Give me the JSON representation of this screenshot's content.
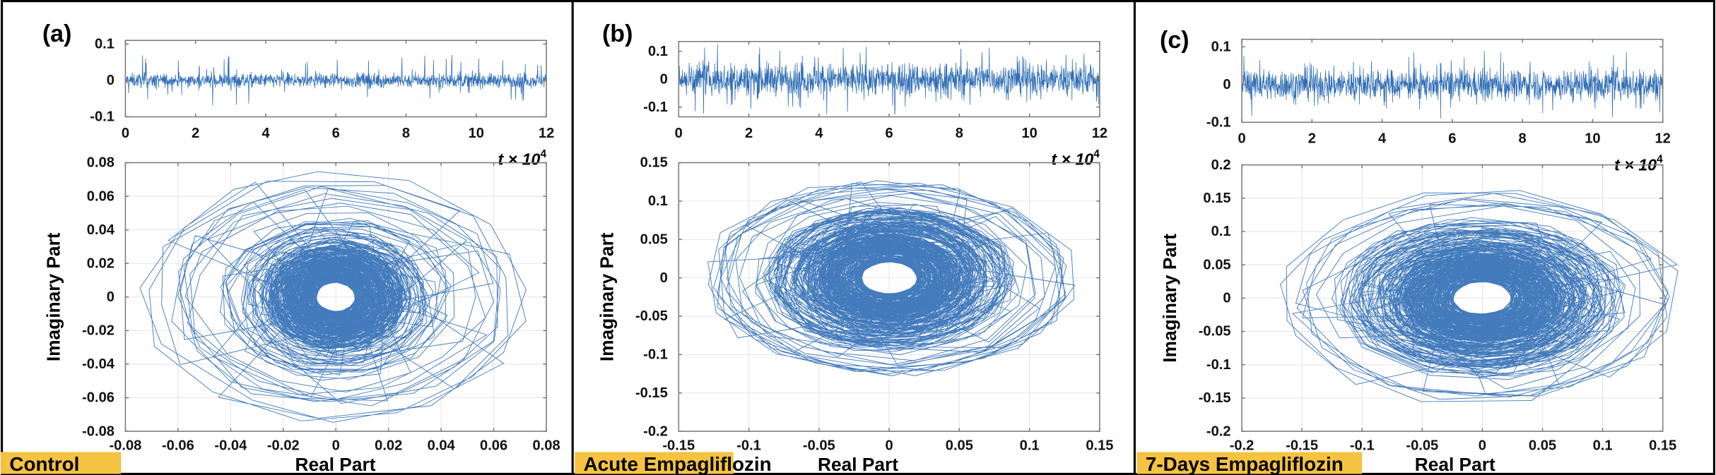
{
  "chart_data": [
    {
      "panel_letter": "(a)",
      "condition_label": "Control",
      "timeseries": {
        "type": "line",
        "xlabel": "t × 10",
        "xlabel_exponent": "4",
        "xlim": [
          0,
          12
        ],
        "ylim": [
          -0.1,
          0.11
        ],
        "xticks": [
          "0",
          "2",
          "4",
          "6",
          "8",
          "10",
          "12"
        ],
        "xtick_values": [
          0,
          2,
          4,
          6,
          8,
          10,
          12
        ],
        "yticks": [
          "0.1",
          "0",
          "-0.1"
        ],
        "ytick_values": [
          0.1,
          0,
          -0.1
        ],
        "core_amplitude": 0.012,
        "peak_amplitude": 0.07
      },
      "phase": {
        "type": "line",
        "xlabel": "Real Part",
        "ylabel": "Imaginary Part",
        "xlim": [
          -0.08,
          0.08
        ],
        "ylim": [
          -0.08,
          0.08
        ],
        "xticks": [
          "-0.08",
          "-0.06",
          "-0.04",
          "-0.02",
          "0",
          "0.02",
          "0.04",
          "0.06",
          "0.08"
        ],
        "xtick_values": [
          -0.08,
          -0.06,
          -0.04,
          -0.02,
          0,
          0.02,
          0.04,
          0.06,
          0.08
        ],
        "yticks": [
          "0.08",
          "0.06",
          "0.04",
          "0.02",
          "0",
          "-0.02",
          "-0.04",
          "-0.06",
          "-0.08"
        ],
        "ytick_values": [
          0.08,
          0.06,
          0.04,
          0.02,
          0,
          -0.02,
          -0.04,
          -0.06,
          -0.08
        ],
        "grid": true,
        "core_radius": [
          0.03,
          0.035
        ],
        "outer_radius": [
          0.075,
          0.075
        ]
      }
    },
    {
      "panel_letter": "(b)",
      "condition_label": "Acute Empagliflozin",
      "timeseries": {
        "type": "line",
        "xlabel": "t × 10",
        "xlabel_exponent": "4",
        "xlim": [
          0,
          12
        ],
        "ylim": [
          -0.135,
          0.135
        ],
        "xticks": [
          "0",
          "2",
          "4",
          "6",
          "8",
          "10",
          "12"
        ],
        "xtick_values": [
          0,
          2,
          4,
          6,
          8,
          10,
          12
        ],
        "yticks": [
          "0.1",
          "0",
          "-0.1"
        ],
        "ytick_values": [
          0.1,
          0,
          -0.1
        ],
        "core_amplitude": 0.035,
        "peak_amplitude": 0.13
      },
      "phase": {
        "type": "line",
        "xlabel": "Real Part",
        "ylabel": "Imaginary Part",
        "xlim": [
          -0.15,
          0.15
        ],
        "ylim": [
          -0.2,
          0.15
        ],
        "xticks": [
          "-0.15",
          "-0.1",
          "-0.05",
          "0",
          "0.05",
          "0.1",
          "0.15"
        ],
        "xtick_values": [
          -0.15,
          -0.1,
          -0.05,
          0,
          0.05,
          0.1,
          0.15
        ],
        "yticks": [
          "0.15",
          "0.1",
          "0.05",
          "0",
          "-0.05",
          "-0.1",
          "-0.15",
          "-0.2"
        ],
        "ytick_values": [
          0.15,
          0.1,
          0.05,
          0,
          -0.05,
          -0.1,
          -0.15,
          -0.2
        ],
        "grid": true,
        "core_radius": [
          0.08,
          0.085
        ],
        "outer_radius": [
          0.135,
          0.13
        ]
      }
    },
    {
      "panel_letter": "(c)",
      "condition_label": "7-Days Empagliflozin",
      "timeseries": {
        "type": "line",
        "xlabel": "t × 10",
        "xlabel_exponent": "4",
        "xlim": [
          0,
          12
        ],
        "ylim": [
          -0.1,
          0.12
        ],
        "xticks": [
          "0",
          "2",
          "4",
          "6",
          "8",
          "10",
          "12"
        ],
        "xtick_values": [
          0,
          2,
          4,
          6,
          8,
          10,
          12
        ],
        "yticks": [
          "0.1",
          "0",
          "-0.1"
        ],
        "ytick_values": [
          0.1,
          0,
          -0.1
        ],
        "core_amplitude": 0.025,
        "peak_amplitude": 0.09
      },
      "phase": {
        "type": "line",
        "xlabel": "Real Part",
        "ylabel": "Imaginary Part",
        "xlim": [
          -0.2,
          0.15
        ],
        "ylim": [
          -0.2,
          0.2
        ],
        "xticks": [
          "-0.2",
          "-0.15",
          "-0.1",
          "-0.05",
          "0",
          "0.05",
          "0.1",
          "0.15"
        ],
        "xtick_values": [
          -0.2,
          -0.15,
          -0.1,
          -0.05,
          0,
          0.05,
          0.1,
          0.15
        ],
        "yticks": [
          "0.2",
          "0.15",
          "0.1",
          "0.05",
          "0",
          "-0.05",
          "-0.1",
          "-0.15",
          "-0.2"
        ],
        "ytick_values": [
          0.2,
          0.15,
          0.1,
          0.05,
          0,
          -0.05,
          -0.1,
          -0.15,
          -0.2
        ],
        "grid": true,
        "core_radius": [
          0.1,
          0.1
        ],
        "outer_radius": [
          0.17,
          0.165
        ]
      }
    }
  ],
  "colors": {
    "line": "#2f6db5",
    "label_bg": "#f5c242",
    "axis": "#7a7a7a",
    "grid": "#e6e6e6",
    "border": "#000000"
  }
}
